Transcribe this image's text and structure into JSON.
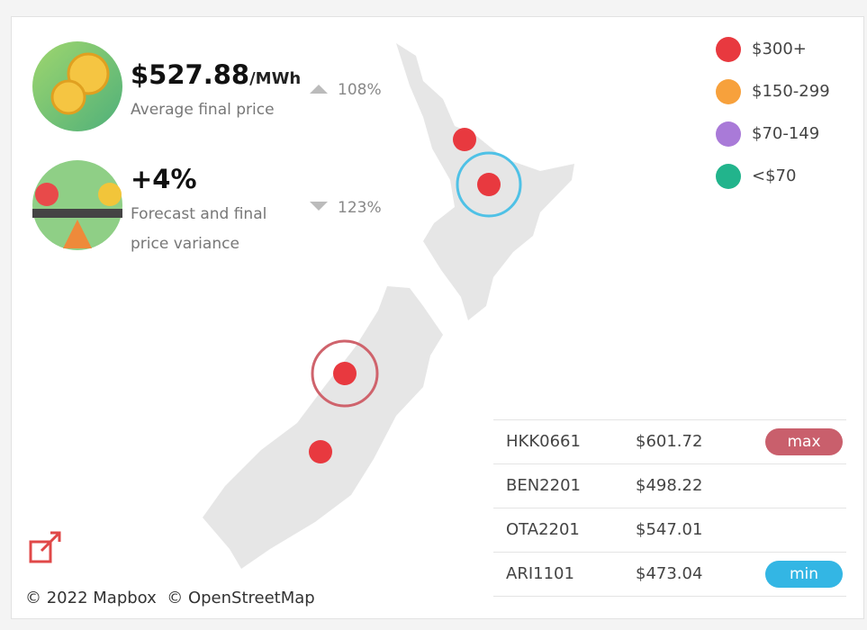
{
  "kpis": [
    {
      "value": "$527.88",
      "unit": "/MWh",
      "label": "Average final price",
      "change": "108%",
      "direction": "up"
    },
    {
      "value": "+4%",
      "label": "Forecast and final",
      "label_line2": "price variance",
      "change": "123%",
      "direction": "down"
    }
  ],
  "legend": [
    {
      "label": "$300+",
      "color": "#e8393f"
    },
    {
      "label": "$150-299",
      "color": "#f7a13c"
    },
    {
      "label": "$70-149",
      "color": "#a97ad8"
    },
    {
      "label": "<$70",
      "color": "#22b48c"
    }
  ],
  "table": {
    "rows": [
      {
        "node": "HKK0661",
        "price": "$601.72",
        "badge": "max",
        "badge_color": "#c95f6c"
      },
      {
        "node": "BEN2201",
        "price": "$498.22"
      },
      {
        "node": "OTA2201",
        "price": "$547.01"
      },
      {
        "node": "ARI1101",
        "price": "$473.04",
        "badge": "min",
        "badge_color": "#33b6e4"
      }
    ]
  },
  "attribution": {
    "mapbox": "© 2022 Mapbox",
    "osm": "© OpenStreetMap"
  }
}
